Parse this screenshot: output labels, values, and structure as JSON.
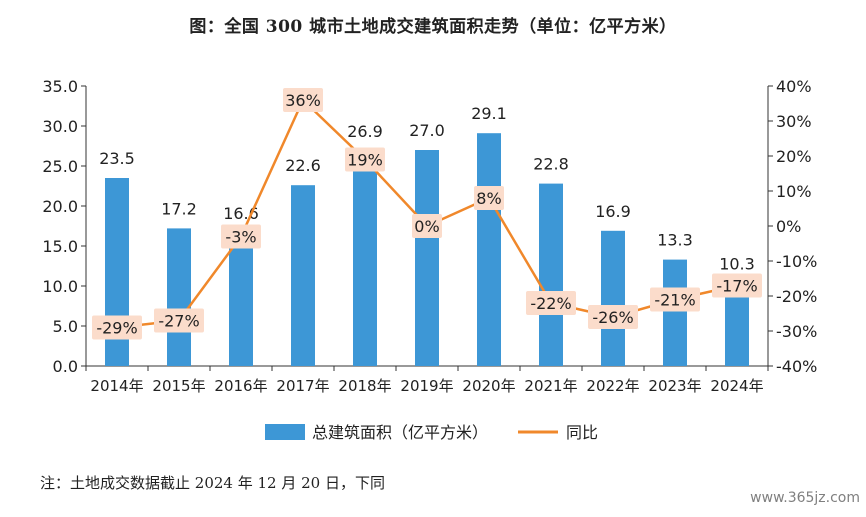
{
  "title": "图：全国 300 城市土地成交建筑面积走势（单位：亿平方米）",
  "note": "注：土地成交数据截止 2024 年 12 月 20 日，下同",
  "watermark": "www.365jz.com",
  "chart_data": {
    "type": "bar+line",
    "categories": [
      "2014年",
      "2015年",
      "2016年",
      "2017年",
      "2018年",
      "2019年",
      "2020年",
      "2021年",
      "2022年",
      "2023年",
      "2024年"
    ],
    "series": [
      {
        "name": "总建筑面积（亿平方米）",
        "type": "bar",
        "axis": "left",
        "color": "#3d97d6",
        "values": [
          23.5,
          17.2,
          16.6,
          22.6,
          26.9,
          27.0,
          29.1,
          22.8,
          16.9,
          13.3,
          10.3
        ],
        "labels": [
          "23.5",
          "17.2",
          "16.6",
          "22.6",
          "26.9",
          "27.0",
          "29.1",
          "22.8",
          "16.9",
          "13.3",
          "10.3"
        ]
      },
      {
        "name": "同比",
        "type": "line",
        "axis": "right",
        "color": "#f0882b",
        "values": [
          -29,
          -27,
          -3,
          36,
          19,
          0,
          8,
          -22,
          -26,
          -21,
          -17
        ],
        "labels": [
          "-29%",
          "-27%",
          "-3%",
          "36%",
          "19%",
          "0%",
          "8%",
          "-22%",
          "-26%",
          "-21%",
          "-17%"
        ]
      }
    ],
    "left_axis": {
      "ylim": [
        0,
        35
      ],
      "ticks": [
        "0.0",
        "5.0",
        "10.0",
        "15.0",
        "20.0",
        "25.0",
        "30.0",
        "35.0"
      ]
    },
    "right_axis": {
      "ylim": [
        -40,
        40
      ],
      "ticks": [
        "-40%",
        "-30%",
        "-20%",
        "-10%",
        "0%",
        "10%",
        "20%",
        "30%",
        "40%"
      ]
    },
    "legend_position": "bottom",
    "label_box_color": "#fbdccb"
  }
}
